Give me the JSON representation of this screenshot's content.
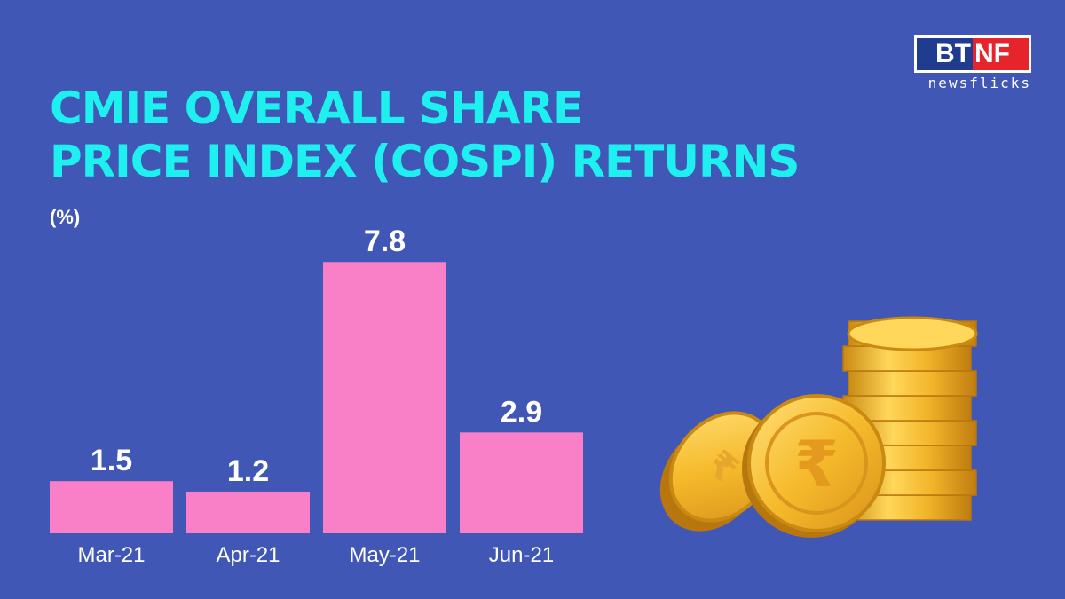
{
  "title_lines": [
    "CMIE OVERALL SHARE",
    "PRICE INDEX (COSPI) RETURNS"
  ],
  "unit_label": "(%)",
  "logo": {
    "left": "BT",
    "right": "NF",
    "sub": "newsflicks"
  },
  "colors": {
    "background": "#4157b5",
    "title": "#1ef0f0",
    "bar": "#f97fc7",
    "text": "#ffffff"
  },
  "chart_data": {
    "type": "bar",
    "categories": [
      "Mar-21",
      "Apr-21",
      "May-21",
      "Jun-21"
    ],
    "values": [
      1.5,
      1.2,
      7.8,
      2.9
    ],
    "title": "CMIE OVERALL SHARE PRICE INDEX (COSPI) RETURNS",
    "ylabel": "(%)",
    "xlabel": "",
    "data_labels": true,
    "grid": false,
    "legend": "none"
  },
  "decoration": {
    "icon": "rupee-coin-stack-icon",
    "coin_symbol": "₹"
  }
}
